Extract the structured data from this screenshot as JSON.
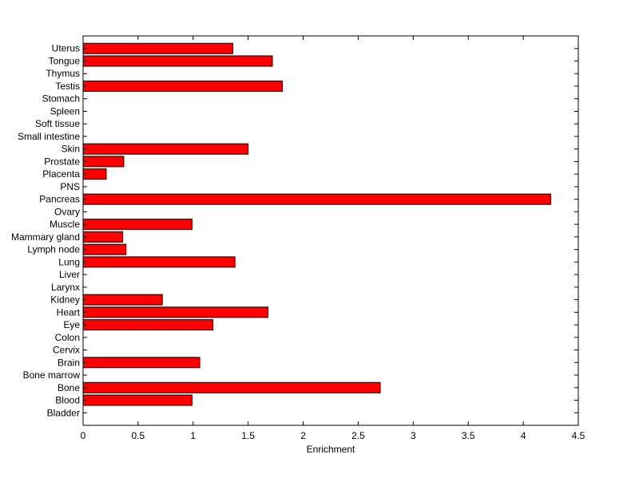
{
  "chart_data": {
    "type": "bar",
    "orientation": "horizontal",
    "title": "",
    "xlabel": "Enrichment",
    "ylabel": "",
    "xlim": [
      0,
      4.5
    ],
    "xticks": [
      0,
      0.5,
      1,
      1.5,
      2,
      2.5,
      3,
      3.5,
      4,
      4.5
    ],
    "xtick_labels": [
      "0",
      "0.5",
      "1",
      "1.5",
      "2",
      "2.5",
      "3",
      "3.5",
      "4",
      "4.5"
    ],
    "grid": false,
    "legend": "none",
    "bar_color": "#ff0000",
    "bar_edge_color": "#000000",
    "categories": [
      "Bladder",
      "Blood",
      "Bone",
      "Bone marrow",
      "Brain",
      "Cervix",
      "Colon",
      "Eye",
      "Heart",
      "Kidney",
      "Larynx",
      "Liver",
      "Lung",
      "Lymph node",
      "Mammary gland",
      "Muscle",
      "Ovary",
      "Pancreas",
      "PNS",
      "Placenta",
      "Prostate",
      "Skin",
      "Small intestine",
      "Soft tissue",
      "Spleen",
      "Stomach",
      "Testis",
      "Thymus",
      "Tongue",
      "Uterus"
    ],
    "values": [
      0,
      0.99,
      2.7,
      0,
      1.06,
      0,
      0,
      1.18,
      1.68,
      0.72,
      0,
      0,
      1.38,
      0.39,
      0.36,
      0.99,
      0,
      4.25,
      0,
      0.21,
      0.37,
      1.5,
      0,
      0,
      0,
      0,
      1.81,
      0,
      1.72,
      1.36
    ]
  }
}
